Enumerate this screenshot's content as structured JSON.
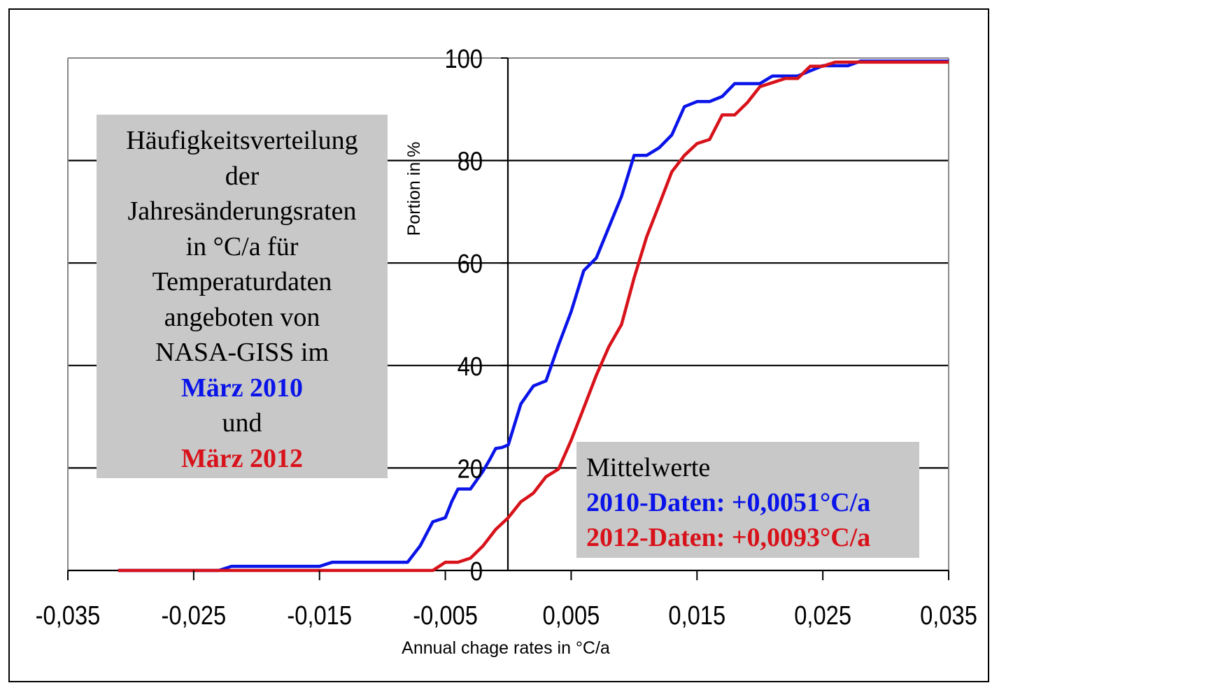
{
  "chart_data": {
    "type": "line",
    "xlabel": "Annual chage rates in °C/a",
    "ylabel": "Portion in %",
    "xlim": [
      -0.035,
      0.035
    ],
    "ylim": [
      0,
      100
    ],
    "x_ticks": [
      -0.035,
      -0.025,
      -0.015,
      -0.005,
      0.005,
      0.015,
      0.025,
      0.035
    ],
    "x_tick_labels": [
      "-0,035",
      "-0,025",
      "-0,015",
      "-0,005",
      "0,005",
      "0,015",
      "0,025",
      "0,035"
    ],
    "y_ticks": [
      0,
      20,
      40,
      60,
      80,
      100
    ],
    "y_tick_labels": [
      "0",
      "20",
      "40",
      "60",
      "80",
      "100"
    ],
    "grid": "horizontal",
    "series": [
      {
        "color": "#0a14e8",
        "x": [
          -0.031,
          -0.023,
          -0.022,
          -0.015,
          -0.014,
          -0.008,
          -0.007,
          -0.006,
          -0.005,
          -0.0045,
          -0.004,
          -0.003,
          -0.002,
          -0.0015,
          -0.001,
          -0.0005,
          0.0,
          0.001,
          0.002,
          0.003,
          0.004,
          0.005,
          0.006,
          0.007,
          0.008,
          0.009,
          0.01,
          0.011,
          0.012,
          0.013,
          0.014,
          0.015,
          0.016,
          0.017,
          0.018,
          0.019,
          0.02,
          0.021,
          0.022,
          0.023,
          0.024,
          0.025,
          0.026,
          0.027,
          0.028,
          0.035
        ],
        "y": [
          0,
          0,
          0.8,
          0.8,
          1.6,
          1.6,
          4.8,
          9.5,
          10.3,
          13.4,
          15.9,
          15.9,
          19.4,
          21.5,
          23.8,
          24.0,
          24.5,
          32.5,
          36.0,
          37.0,
          44.0,
          50.5,
          58.5,
          61.0,
          67.0,
          73.0,
          81.0,
          81.0,
          82.5,
          85.0,
          90.5,
          91.5,
          91.5,
          92.5,
          95.0,
          95.0,
          95.0,
          96.5,
          96.5,
          96.5,
          97.5,
          98.5,
          98.5,
          98.5,
          99.4,
          99.4
        ]
      },
      {
        "color": "#d8121a",
        "x": [
          -0.031,
          -0.006,
          -0.005,
          -0.004,
          -0.003,
          -0.002,
          -0.001,
          0.0,
          0.001,
          0.002,
          0.003,
          0.004,
          0.005,
          0.006,
          0.007,
          0.008,
          0.009,
          0.01,
          0.011,
          0.012,
          0.013,
          0.014,
          0.015,
          0.016,
          0.017,
          0.018,
          0.019,
          0.02,
          0.021,
          0.022,
          0.023,
          0.024,
          0.025,
          0.026,
          0.027,
          0.028,
          0.035
        ],
        "y": [
          0,
          0,
          1.6,
          1.6,
          2.4,
          4.8,
          8.0,
          10.3,
          13.4,
          15.1,
          18.3,
          19.8,
          25.4,
          31.7,
          38.1,
          43.7,
          48.0,
          57.1,
          65.1,
          71.4,
          77.8,
          81.0,
          83.3,
          84.1,
          88.9,
          88.9,
          91.3,
          94.4,
          95.2,
          96.0,
          96.0,
          98.4,
          98.4,
          99.2,
          99.2,
          99.2,
          99.2
        ]
      }
    ]
  },
  "title_box": {
    "lines": [
      "Häufigkeitsverteilung",
      "der",
      "Jahresänderungsraten",
      "in °C/a für",
      "Temperaturdaten",
      "angeboten von",
      "NASA-GISS im"
    ],
    "label_2010": "März 2010",
    "connector": "und",
    "label_2012": "März 2012"
  },
  "means_box": {
    "heading": "Mittelwerte",
    "line_2010": "2010-Daten: +0,0051°C/a",
    "line_2012": "2012-Daten: +0,0093°C/a"
  }
}
